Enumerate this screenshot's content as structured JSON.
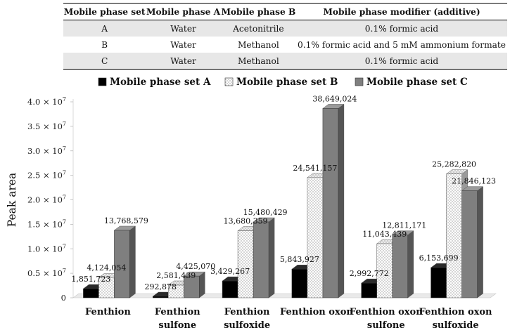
{
  "table": {
    "headers": [
      "Mobile phase set",
      "Mobile phase A",
      "Mobile phase B",
      "Mobile phase modifier (additive)"
    ],
    "rows": [
      [
        "A",
        "Water",
        "Acetonitrile",
        "0.1% formic acid"
      ],
      [
        "B",
        "Water",
        "Methanol",
        "0.1% formic acid and 5 mM ammonium formate"
      ],
      [
        "C",
        "Water",
        "Methanol",
        "0.1% formic acid"
      ]
    ]
  },
  "chart_data": {
    "type": "bar",
    "title": "",
    "xlabel": "",
    "ylabel": "Peak area",
    "ylim": [
      0,
      40000000
    ],
    "yticks": [
      "0",
      "0.5 × 10⁷",
      "1.0 × 10⁷",
      "1.5 × 10⁷",
      "2.0 × 10⁷",
      "2.5 × 10⁷",
      "3.0 × 10⁷",
      "3.5 × 10⁷",
      "4.0 × 10⁷"
    ],
    "categories": [
      [
        "Fenthion"
      ],
      [
        "Fenthion",
        "sulfone"
      ],
      [
        "Fenthion",
        "sulfoxide"
      ],
      [
        "Fenthion oxon"
      ],
      [
        "Fenthion oxon",
        "sulfone"
      ],
      [
        "Fenthion oxon",
        "sulfoxide"
      ]
    ],
    "series": [
      {
        "name": "Mobile phase set A",
        "fill": "solid-black",
        "color": "#000000",
        "values": [
          1851723,
          292878,
          3429267,
          5843927,
          2992772,
          6153699
        ],
        "labels": [
          "1,851,723",
          "292,878",
          "3,429,267",
          "5,843,927",
          "2,992,772",
          "6,153,699"
        ]
      },
      {
        "name": "Mobile phase set B",
        "fill": "dotted-white",
        "color": "#ffffff",
        "values": [
          4124054,
          2581439,
          13680359,
          24541157,
          11043439,
          25282820
        ],
        "labels": [
          "4,124,054",
          "2,581,439",
          "13,680,359",
          "24,541,157",
          "11,043,439",
          "25,282,820"
        ]
      },
      {
        "name": "Mobile phase set C",
        "fill": "solid-gray",
        "color": "#808080",
        "values": [
          13768579,
          4425070,
          15480429,
          38649024,
          12811171,
          21846123
        ],
        "labels": [
          "13,768,579",
          "4,425,070",
          "15,480,429",
          "38,649,024",
          "12,811,171",
          "21,846,123"
        ]
      }
    ],
    "legend_position": "top",
    "grid": false
  }
}
